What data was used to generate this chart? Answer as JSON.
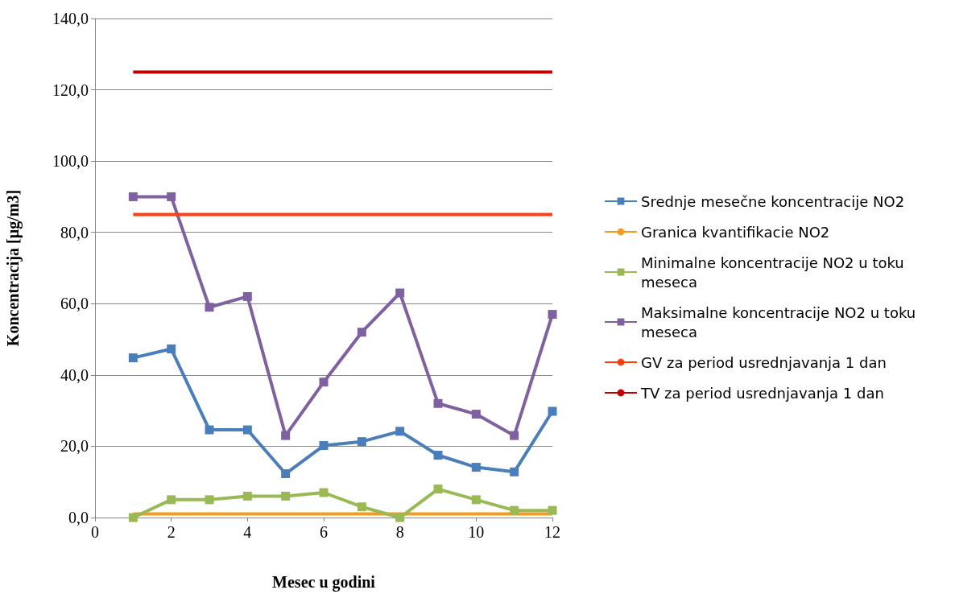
{
  "chart_data": {
    "type": "line",
    "xlabel": "Mesec u godini",
    "ylabel": "Koncentracija [µg/m3]",
    "x": [
      1,
      2,
      3,
      4,
      5,
      6,
      7,
      8,
      9,
      10,
      11,
      12
    ],
    "xlim": [
      0,
      12
    ],
    "xticks": [
      0,
      2,
      4,
      6,
      8,
      10,
      12
    ],
    "ylim": [
      0,
      140
    ],
    "yticks": [
      {
        "value": 0,
        "label": "0,0"
      },
      {
        "value": 20,
        "label": "20,0"
      },
      {
        "value": 40,
        "label": "40,0"
      },
      {
        "value": 60,
        "label": "60,0"
      },
      {
        "value": 80,
        "label": "80,0"
      },
      {
        "value": 100,
        "label": "100,0"
      },
      {
        "value": 120,
        "label": "120,0"
      },
      {
        "value": 140,
        "label": "140,0"
      }
    ],
    "grid": "y",
    "legend": "right",
    "series": [
      {
        "name": "Srednje mesečne koncentracije NO2",
        "color": "#4a7ebb",
        "marker": "square",
        "values": [
          44.8,
          47.3,
          24.6,
          24.6,
          12.3,
          20.2,
          21.3,
          24.2,
          17.5,
          14.1,
          12.8,
          29.8
        ]
      },
      {
        "name": "Granica kvantifikacie NO2",
        "color": "#f79b1c",
        "marker": "none",
        "values": [
          1,
          1,
          1,
          1,
          1,
          1,
          1,
          1,
          1,
          1,
          1,
          1
        ]
      },
      {
        "name": "Minimalne koncentracije NO2 u toku meseca",
        "color": "#98b954",
        "marker": "square",
        "values": [
          0,
          5,
          5,
          6,
          6,
          7,
          3,
          0,
          8,
          5,
          2,
          2
        ]
      },
      {
        "name": "Maksimalne koncentracije NO2 u toku meseca",
        "color": "#7f60a0",
        "marker": "square",
        "values": [
          90,
          90,
          59,
          62,
          23,
          38,
          52,
          63,
          32,
          29,
          23,
          57
        ]
      },
      {
        "name": "GV za period usrednjavanja 1 dan",
        "color": "#ff3f0f",
        "marker": "none",
        "values": [
          85,
          85,
          85,
          85,
          85,
          85,
          85,
          85,
          85,
          85,
          85,
          85
        ]
      },
      {
        "name": "TV za period usrednjavanja 1 dan",
        "color": "#c00000",
        "marker": "none",
        "values": [
          125,
          125,
          125,
          125,
          125,
          125,
          125,
          125,
          125,
          125,
          125,
          125
        ]
      }
    ]
  }
}
